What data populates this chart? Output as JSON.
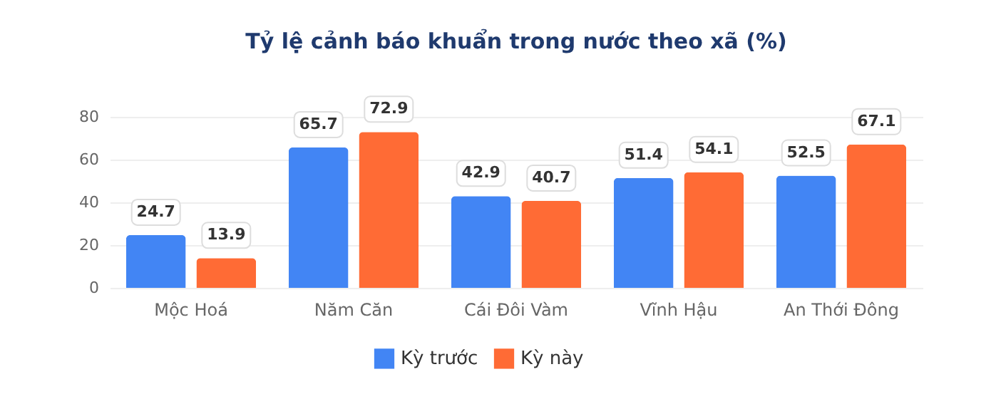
{
  "chart_data": {
    "type": "bar",
    "title": "Tỷ lệ cảnh báo khuẩn trong nước theo xã (%)",
    "categories": [
      "Mộc Hoá",
      "Năm Căn",
      "Cái Đôi Vàm",
      "Vĩnh Hậu",
      "An Thới Đông"
    ],
    "series": [
      {
        "name": "Kỳ trước",
        "color": "#4285f4",
        "values": [
          24.7,
          65.7,
          42.9,
          51.4,
          52.5
        ]
      },
      {
        "name": "Kỳ này",
        "color": "#ff6b35",
        "values": [
          13.9,
          72.9,
          40.7,
          54.1,
          67.1
        ]
      }
    ],
    "ylim": [
      0,
      80
    ],
    "yticks": [
      0,
      20,
      40,
      60,
      80
    ],
    "grid": "y",
    "legend": "bottom",
    "data_labels": true
  }
}
